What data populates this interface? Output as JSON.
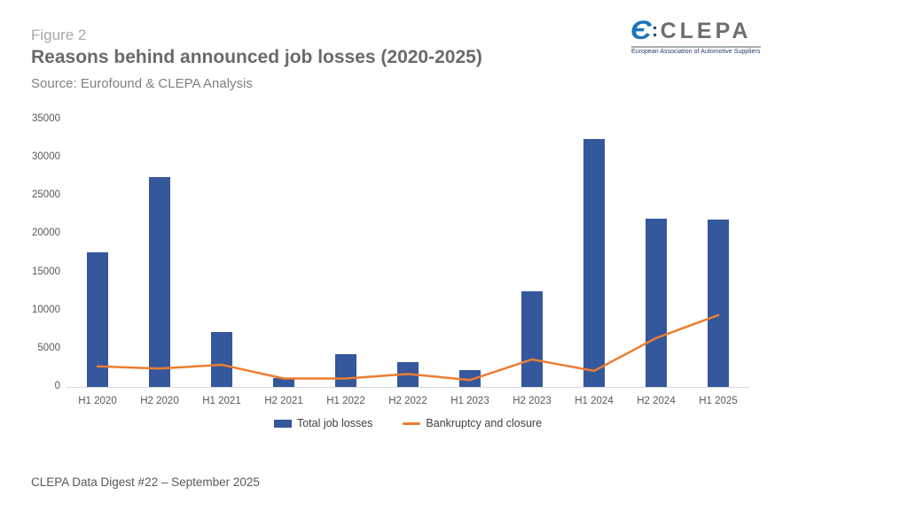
{
  "slide": {
    "figure_label": "Figure 2",
    "title": "Reasons behind announced job losses (2020-2025)",
    "source": "Source: Eurofound & CLEPA Analysis",
    "footer": "CLEPA Data Digest #22 – September 2025"
  },
  "logo": {
    "word": "CLEPA",
    "tagline": "European Association of Automotive Suppliers",
    "glyph": "Є",
    "icon_color": "#1b75bc",
    "word_color": "#6d6e71",
    "tagline_color": "#1f3864"
  },
  "chart_data": {
    "type": "bar",
    "title": "Reasons behind announced job losses (2020-2025)",
    "xlabel": "",
    "ylabel": "",
    "categories": [
      "H1 2020",
      "H2 2020",
      "H1 2021",
      "H2 2021",
      "H1 2022",
      "H2 2022",
      "H1 2023",
      "H2 2023",
      "H1 2024",
      "H2 2024",
      "H1 2025"
    ],
    "series": [
      {
        "name": "Total job losses",
        "type": "bar",
        "color": "#35579b",
        "values": [
          17600,
          27500,
          7200,
          1200,
          4300,
          3200,
          2200,
          12500,
          32400,
          22000,
          21900
        ]
      },
      {
        "name": "Bankruptcy and closure",
        "type": "line",
        "color": "#ed7d31",
        "values": [
          2700,
          2400,
          2900,
          1100,
          1100,
          1700,
          900,
          3600,
          2100,
          6400,
          9400
        ]
      }
    ],
    "ylim": [
      0,
      35000
    ],
    "yticks": [
      0,
      5000,
      10000,
      15000,
      20000,
      25000,
      30000,
      35000
    ],
    "grid": false,
    "legend_position": "bottom",
    "axis_color": "#d9d9d9",
    "tick_label_color": "#595959"
  }
}
